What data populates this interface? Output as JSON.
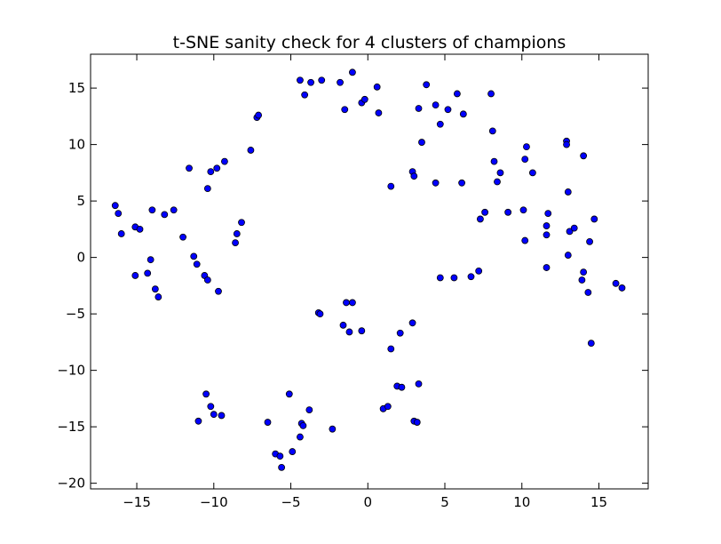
{
  "chart_data": {
    "type": "scatter",
    "title": "t-SNE sanity check for 4 clusters of champions",
    "xlabel": "",
    "ylabel": "",
    "xlim": [
      -18,
      18.2
    ],
    "ylim": [
      -20.5,
      18
    ],
    "grid": false,
    "marker_color": "#0000ff",
    "x_ticks": [
      -15,
      -10,
      -5,
      0,
      5,
      10,
      15
    ],
    "x_tick_labels": [
      "−15",
      "−10",
      "−5",
      "0",
      "5",
      "10",
      "15"
    ],
    "y_ticks": [
      -20,
      -15,
      -10,
      -5,
      0,
      5,
      10,
      15
    ],
    "y_tick_labels": [
      "−20",
      "−15",
      "−10",
      "−5",
      "0",
      "5",
      "10",
      "15"
    ],
    "points": [
      [
        -16.4,
        4.6
      ],
      [
        -16.2,
        3.9
      ],
      [
        -16.0,
        2.1
      ],
      [
        -15.1,
        2.7
      ],
      [
        -14.8,
        2.5
      ],
      [
        -14.0,
        4.2
      ],
      [
        -13.2,
        3.8
      ],
      [
        -12.6,
        4.2
      ],
      [
        -12.0,
        1.8
      ],
      [
        -15.1,
        -1.6
      ],
      [
        -14.3,
        -1.4
      ],
      [
        -14.1,
        -0.2
      ],
      [
        -13.8,
        -2.8
      ],
      [
        -13.6,
        -3.5
      ],
      [
        -11.3,
        0.1
      ],
      [
        -11.1,
        -0.6
      ],
      [
        -10.6,
        -1.6
      ],
      [
        -10.4,
        -2.0
      ],
      [
        -9.7,
        -3.0
      ],
      [
        -11.6,
        7.9
      ],
      [
        -10.4,
        6.1
      ],
      [
        -10.2,
        7.6
      ],
      [
        -9.8,
        7.9
      ],
      [
        -9.3,
        8.5
      ],
      [
        -8.6,
        1.3
      ],
      [
        -8.5,
        2.1
      ],
      [
        -8.2,
        3.1
      ],
      [
        -7.6,
        9.5
      ],
      [
        -7.2,
        12.4
      ],
      [
        -7.1,
        12.6
      ],
      [
        -4.4,
        15.7
      ],
      [
        -4.1,
        14.4
      ],
      [
        -3.7,
        15.5
      ],
      [
        -3.0,
        15.7
      ],
      [
        -1.8,
        15.5
      ],
      [
        -1.5,
        13.1
      ],
      [
        -1.0,
        16.4
      ],
      [
        -0.4,
        13.7
      ],
      [
        -0.2,
        14.0
      ],
      [
        0.6,
        15.1
      ],
      [
        0.7,
        12.8
      ],
      [
        3.3,
        13.2
      ],
      [
        3.8,
        15.3
      ],
      [
        4.4,
        13.5
      ],
      [
        4.7,
        11.8
      ],
      [
        5.2,
        13.1
      ],
      [
        5.8,
        14.5
      ],
      [
        6.2,
        12.7
      ],
      [
        3.5,
        10.2
      ],
      [
        2.9,
        7.6
      ],
      [
        3.0,
        7.2
      ],
      [
        1.5,
        6.3
      ],
      [
        4.4,
        6.6
      ],
      [
        6.1,
        6.6
      ],
      [
        8.0,
        14.5
      ],
      [
        8.1,
        11.2
      ],
      [
        8.2,
        8.5
      ],
      [
        8.4,
        6.7
      ],
      [
        8.6,
        7.5
      ],
      [
        10.3,
        9.8
      ],
      [
        10.2,
        8.7
      ],
      [
        10.7,
        7.5
      ],
      [
        12.9,
        10.3
      ],
      [
        12.9,
        10.0
      ],
      [
        13.0,
        5.8
      ],
      [
        14.0,
        9.0
      ],
      [
        7.3,
        3.4
      ],
      [
        7.6,
        4.0
      ],
      [
        9.1,
        4.0
      ],
      [
        10.1,
        4.2
      ],
      [
        10.2,
        1.5
      ],
      [
        11.6,
        2.8
      ],
      [
        11.7,
        3.9
      ],
      [
        11.6,
        2.0
      ],
      [
        13.1,
        2.3
      ],
      [
        13.4,
        2.6
      ],
      [
        14.4,
        1.4
      ],
      [
        14.7,
        3.4
      ],
      [
        13.0,
        0.2
      ],
      [
        11.6,
        -0.9
      ],
      [
        14.0,
        -1.3
      ],
      [
        13.9,
        -2.0
      ],
      [
        14.3,
        -3.1
      ],
      [
        16.1,
        -2.3
      ],
      [
        16.5,
        -2.7
      ],
      [
        14.5,
        -7.6
      ],
      [
        4.7,
        -1.8
      ],
      [
        5.6,
        -1.8
      ],
      [
        6.7,
        -1.7
      ],
      [
        7.2,
        -1.2
      ],
      [
        -3.2,
        -4.9
      ],
      [
        -3.1,
        -5.0
      ],
      [
        -1.4,
        -4.0
      ],
      [
        -1.0,
        -4.0
      ],
      [
        -1.6,
        -6.0
      ],
      [
        -1.2,
        -6.6
      ],
      [
        -0.4,
        -6.5
      ],
      [
        1.5,
        -8.1
      ],
      [
        2.1,
        -6.7
      ],
      [
        2.9,
        -5.8
      ],
      [
        -10.5,
        -12.1
      ],
      [
        -10.2,
        -13.2
      ],
      [
        -10.0,
        -13.9
      ],
      [
        -9.5,
        -14.0
      ],
      [
        -11.0,
        -14.5
      ],
      [
        -6.5,
        -14.6
      ],
      [
        -6.0,
        -17.4
      ],
      [
        -5.7,
        -17.6
      ],
      [
        -5.6,
        -18.6
      ],
      [
        -5.1,
        -12.1
      ],
      [
        -4.9,
        -17.2
      ],
      [
        -4.4,
        -15.9
      ],
      [
        -4.3,
        -14.7
      ],
      [
        -4.2,
        -14.9
      ],
      [
        -3.8,
        -13.5
      ],
      [
        -2.3,
        -15.2
      ],
      [
        1.0,
        -13.4
      ],
      [
        1.3,
        -13.2
      ],
      [
        1.9,
        -11.4
      ],
      [
        2.2,
        -11.5
      ],
      [
        3.0,
        -14.5
      ],
      [
        3.2,
        -14.6
      ],
      [
        3.3,
        -11.2
      ]
    ]
  }
}
